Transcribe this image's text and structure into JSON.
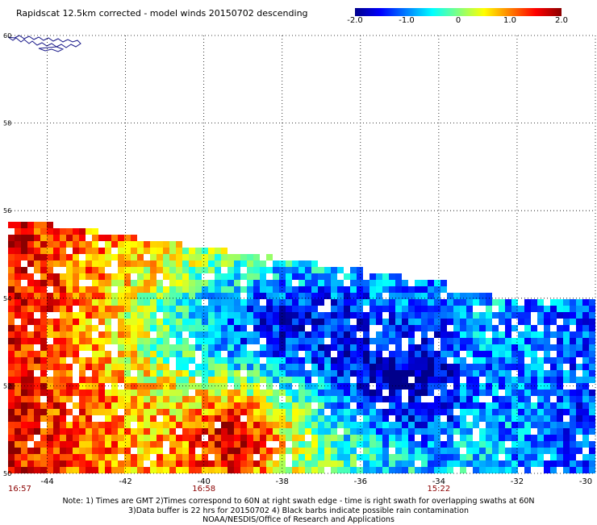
{
  "title": "Rapidscat 12.5km corrected - model winds 20150702 descending",
  "colorbar": {
    "labels": [
      "-2.0",
      "-1.0",
      "0",
      "1.0",
      "2.0"
    ],
    "label_values": [
      -2.0,
      -1.0,
      0,
      1.0,
      2.0
    ],
    "range": [
      -2.0,
      2.0
    ],
    "colors": [
      "#00008b",
      "#0000ff",
      "#0080ff",
      "#00ffff",
      "#80ff80",
      "#ffff00",
      "#ff8000",
      "#ff0000",
      "#8b0000"
    ]
  },
  "map": {
    "lon_range": [
      -45,
      -30
    ],
    "lat_range": [
      50,
      60
    ],
    "lon_ticks": [
      "-44",
      "-42",
      "-40",
      "-38",
      "-36",
      "-34",
      "-32",
      "-30"
    ],
    "lon_tick_values": [
      -44,
      -42,
      -40,
      -38,
      -36,
      -34,
      -32,
      -30
    ],
    "lat_ticks": [
      "60",
      "58",
      "56",
      "54",
      "52",
      "50"
    ],
    "lat_tick_values": [
      60,
      58,
      56,
      54,
      52,
      50
    ],
    "grid": "dotted",
    "time_labels": [
      {
        "text": "16:57",
        "lon": -45.0
      },
      {
        "text": "16:58",
        "lon": -40.0
      },
      {
        "text": "15:22",
        "lon": -34.0
      }
    ]
  },
  "notes": [
    "Note: 1) Times are GMT 2)Times correspond to 60N at right swath edge - time is right swath for overlapping swaths at 60N",
    "3)Data buffer is 22 hrs for 20150702 4) Black barbs indicate possible rain contamination",
    "NOAA/NESDIS/Office of Research and Applications"
  ]
}
